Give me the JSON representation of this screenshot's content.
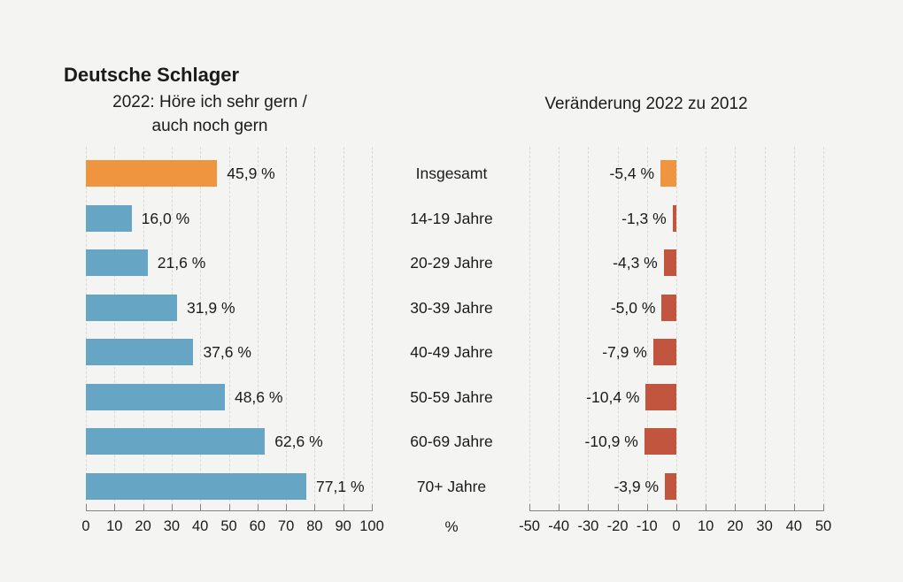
{
  "page": {
    "title": "Deutsche Schlager"
  },
  "left_chart": {
    "subtitle_line1": "2022: Höre ich sehr gern /",
    "subtitle_line2": "auch noch gern",
    "unit_label": "%"
  },
  "right_chart": {
    "subtitle": "Veränderung 2022 zu 2012"
  },
  "colors": {
    "background": "#F4F4F2",
    "highlight_orange": "#F0953F",
    "bar_blue": "#66A6C4",
    "bar_red": "#C1553E",
    "grid": "#D9D9D5",
    "axis": "#85857F",
    "text": "#1B1B19"
  },
  "chart_data": [
    {
      "type": "bar",
      "orientation": "horizontal",
      "title": "2022: Höre ich sehr gern / auch noch gern",
      "categories": [
        "Insgesamt",
        "14-19 Jahre",
        "20-29 Jahre",
        "30-39 Jahre",
        "40-49 Jahre",
        "50-59 Jahre",
        "60-69 Jahre",
        "70+ Jahre"
      ],
      "values": [
        45.9,
        16.0,
        21.6,
        31.9,
        37.6,
        48.6,
        62.6,
        77.1
      ],
      "value_labels": [
        "45,9 %",
        "16,0 %",
        "21,6 %",
        "31,9 %",
        "37,6 %",
        "48,6 %",
        "62,6 %",
        "77,1 %"
      ],
      "bar_colors": [
        "#F0953F",
        "#66A6C4",
        "#66A6C4",
        "#66A6C4",
        "#66A6C4",
        "#66A6C4",
        "#66A6C4",
        "#66A6C4"
      ],
      "xlim": [
        0,
        100
      ],
      "xticks": [
        0,
        10,
        20,
        30,
        40,
        50,
        60,
        70,
        80,
        90,
        100
      ],
      "xtick_labels": [
        "0",
        "10",
        "20",
        "30",
        "40",
        "50",
        "60",
        "70",
        "80",
        "90",
        "100"
      ],
      "xlabel": "%",
      "grid": "dashed-vertical",
      "legend": "none"
    },
    {
      "type": "bar",
      "orientation": "horizontal",
      "title": "Veränderung 2022 zu 2012",
      "categories": [
        "Insgesamt",
        "14-19 Jahre",
        "20-29 Jahre",
        "30-39 Jahre",
        "40-49 Jahre",
        "50-59 Jahre",
        "60-69 Jahre",
        "70+ Jahre"
      ],
      "values": [
        -5.4,
        -1.3,
        -4.3,
        -5.0,
        -7.9,
        -10.4,
        -10.9,
        -3.9
      ],
      "value_labels": [
        "-5,4 %",
        "-1,3 %",
        "-4,3 %",
        "-5,0 %",
        "-7,9 %",
        "-10,4 %",
        "-10,9 %",
        "-3,9 %"
      ],
      "bar_colors": [
        "#F0953F",
        "#C1553E",
        "#C1553E",
        "#C1553E",
        "#C1553E",
        "#C1553E",
        "#C1553E",
        "#C1553E"
      ],
      "xlim": [
        -50,
        50
      ],
      "xticks": [
        -50,
        -40,
        -30,
        -20,
        -10,
        0,
        10,
        20,
        30,
        40,
        50
      ],
      "xtick_labels": [
        "-50",
        "-40",
        "-30",
        "-20",
        "-10",
        "0",
        "10",
        "20",
        "30",
        "40",
        "50"
      ],
      "xlabel": "",
      "grid": "dashed-vertical",
      "legend": "none"
    }
  ]
}
